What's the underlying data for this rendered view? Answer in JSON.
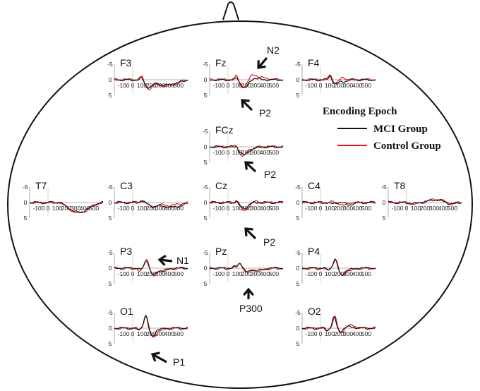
{
  "legend": {
    "title": "Encoding Epoch",
    "items": [
      {
        "label": "MCI Group",
        "color": "#111111"
      },
      {
        "label": "Control Group",
        "color": "#e8161b"
      }
    ]
  },
  "y_ticks": [
    "-5",
    "0",
    "5"
  ],
  "x_ticks": [
    "-100",
    "0",
    "100",
    "200",
    "300",
    "400",
    "500"
  ],
  "channels": [
    {
      "id": "F3",
      "label": "F3"
    },
    {
      "id": "Fz",
      "label": "Fz"
    },
    {
      "id": "F4",
      "label": "F4"
    },
    {
      "id": "FCz",
      "label": "FCz"
    },
    {
      "id": "T7",
      "label": "T7"
    },
    {
      "id": "C3",
      "label": "C3"
    },
    {
      "id": "Cz",
      "label": "Cz"
    },
    {
      "id": "C4",
      "label": "C4"
    },
    {
      "id": "T8",
      "label": "T8"
    },
    {
      "id": "P3",
      "label": "P3"
    },
    {
      "id": "Pz",
      "label": "Pz"
    },
    {
      "id": "P4",
      "label": "P4"
    },
    {
      "id": "O1",
      "label": "O1"
    },
    {
      "id": "O2",
      "label": "O2"
    }
  ],
  "annotations": [
    {
      "id": "n2-fz",
      "label": "N2"
    },
    {
      "id": "p2-fz",
      "label": "P2"
    },
    {
      "id": "p2-fcz",
      "label": "P2"
    },
    {
      "id": "p2-cz",
      "label": "P2"
    },
    {
      "id": "n1-p3",
      "label": "N1"
    },
    {
      "id": "p300-pz",
      "label": "P300"
    },
    {
      "id": "p1-o1",
      "label": "P1"
    }
  ]
}
